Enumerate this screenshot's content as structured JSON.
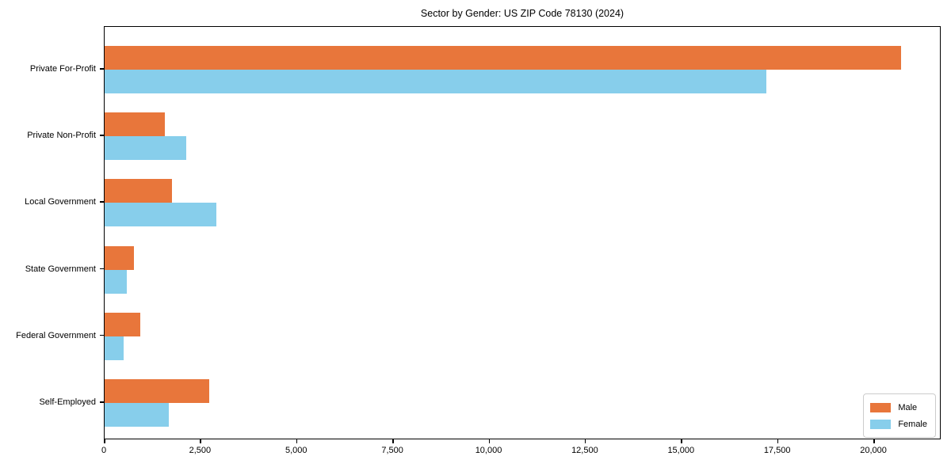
{
  "chart_data": {
    "type": "bar",
    "orientation": "horizontal",
    "title": "Sector by Gender: US ZIP Code 78130 (2024)",
    "categories": [
      "Private For-Profit",
      "Private Non-Profit",
      "Local Government",
      "State Government",
      "Federal Government",
      "Self-Employed"
    ],
    "series": [
      {
        "name": "Male",
        "color": "#e8763b",
        "values": [
          20700,
          1560,
          1750,
          760,
          930,
          2720
        ]
      },
      {
        "name": "Female",
        "color": "#87ceeb",
        "values": [
          17200,
          2120,
          2900,
          580,
          490,
          1670
        ]
      }
    ],
    "xlabel": "",
    "ylabel": "",
    "xlim": [
      0,
      21750
    ],
    "x_ticks": [
      0,
      2500,
      5000,
      7500,
      10000,
      12500,
      15000,
      17500,
      20000
    ],
    "x_tick_labels": [
      "0",
      "2,500",
      "5,000",
      "7,500",
      "10,000",
      "12,500",
      "15,000",
      "17,500",
      "20,000"
    ],
    "legend_position": "lower right",
    "grid": false,
    "background_color": "#ffffff",
    "axis_color": "#000000"
  },
  "legend": {
    "items": [
      {
        "label": "Male",
        "color": "#e8763b"
      },
      {
        "label": "Female",
        "color": "#87ceeb"
      }
    ]
  }
}
